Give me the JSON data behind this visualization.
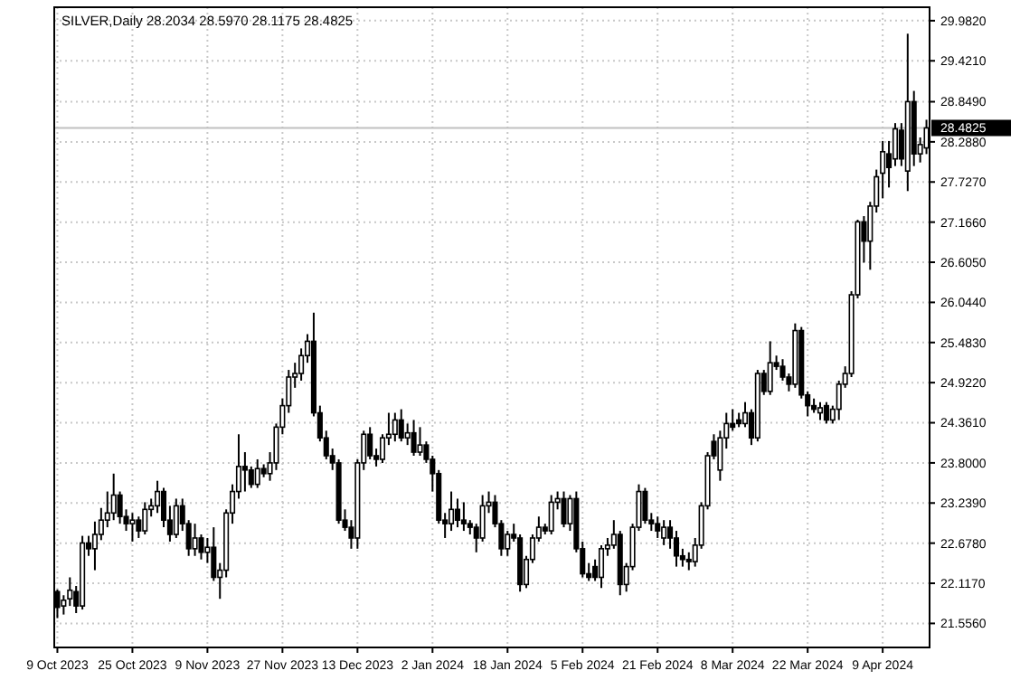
{
  "chart_data": {
    "type": "candlestick",
    "title": "SILVER,Daily  28.2034 28.5970 28.1175 28.4825",
    "categories": [
      "9 Oct 2023",
      null,
      null,
      null,
      null,
      null,
      null,
      null,
      null,
      null,
      null,
      null,
      "25 Oct 2023",
      null,
      null,
      null,
      null,
      null,
      null,
      null,
      null,
      null,
      null,
      null,
      "9 Nov 2023",
      null,
      null,
      null,
      null,
      null,
      null,
      null,
      null,
      null,
      null,
      null,
      "27 Nov 2023",
      null,
      null,
      null,
      null,
      null,
      null,
      null,
      null,
      null,
      null,
      null,
      "13 Dec 2023",
      null,
      null,
      null,
      null,
      null,
      null,
      null,
      null,
      null,
      null,
      null,
      "2 Jan 2024",
      null,
      null,
      null,
      null,
      null,
      null,
      null,
      null,
      null,
      null,
      null,
      "18 Jan 2024",
      null,
      null,
      null,
      null,
      null,
      null,
      null,
      null,
      null,
      null,
      null,
      "5 Feb 2024",
      null,
      null,
      null,
      null,
      null,
      null,
      null,
      null,
      null,
      null,
      null,
      "21 Feb 2024",
      null,
      null,
      null,
      null,
      null,
      null,
      null,
      null,
      null,
      null,
      null,
      "8 Mar 2024",
      null,
      null,
      null,
      null,
      null,
      null,
      null,
      null,
      null,
      null,
      null,
      "22 Mar 2024",
      null,
      null,
      null,
      null,
      null,
      null,
      null,
      null,
      null,
      null,
      null,
      "9 Apr 2024",
      null,
      null,
      null,
      null,
      null,
      null,
      null
    ],
    "ohlc": [
      [
        22.0,
        22.03,
        21.63,
        21.78
      ],
      [
        21.8,
        21.95,
        21.68,
        21.88
      ],
      [
        21.9,
        22.2,
        21.8,
        22.02
      ],
      [
        22.0,
        22.08,
        21.7,
        21.8
      ],
      [
        21.8,
        22.78,
        21.75,
        22.68
      ],
      [
        22.68,
        22.78,
        22.5,
        22.6
      ],
      [
        22.6,
        22.98,
        22.3,
        22.8
      ],
      [
        22.8,
        23.17,
        22.72,
        23.0
      ],
      [
        23.0,
        23.4,
        22.9,
        23.1
      ],
      [
        23.1,
        23.65,
        23.0,
        23.35
      ],
      [
        23.35,
        23.4,
        22.95,
        23.05
      ],
      [
        23.05,
        23.15,
        22.85,
        22.95
      ],
      [
        22.95,
        23.1,
        22.7,
        23.0
      ],
      [
        23.0,
        23.05,
        22.75,
        22.85
      ],
      [
        22.85,
        23.25,
        22.8,
        23.15
      ],
      [
        23.15,
        23.3,
        23.05,
        23.2
      ],
      [
        23.2,
        23.55,
        23.1,
        23.4
      ],
      [
        23.4,
        23.45,
        22.9,
        23.0
      ],
      [
        23.0,
        23.2,
        22.7,
        22.8
      ],
      [
        22.8,
        23.3,
        22.75,
        23.2
      ],
      [
        23.2,
        23.3,
        22.85,
        22.95
      ],
      [
        22.95,
        23.0,
        22.5,
        22.6
      ],
      [
        22.6,
        22.95,
        22.5,
        22.75
      ],
      [
        22.75,
        22.8,
        22.45,
        22.55
      ],
      [
        22.55,
        22.75,
        22.4,
        22.62
      ],
      [
        22.62,
        22.9,
        22.15,
        22.2
      ],
      [
        22.2,
        22.4,
        21.9,
        22.3
      ],
      [
        22.3,
        23.15,
        22.2,
        23.1
      ],
      [
        23.1,
        23.5,
        22.95,
        23.4
      ],
      [
        23.4,
        24.2,
        23.3,
        23.75
      ],
      [
        23.75,
        23.95,
        23.4,
        23.7
      ],
      [
        23.7,
        23.75,
        23.45,
        23.5
      ],
      [
        23.5,
        23.85,
        23.45,
        23.72
      ],
      [
        23.72,
        23.78,
        23.6,
        23.65
      ],
      [
        23.65,
        23.95,
        23.55,
        23.8
      ],
      [
        23.8,
        24.35,
        23.7,
        24.3
      ],
      [
        24.3,
        24.7,
        24.2,
        24.6
      ],
      [
        24.6,
        25.1,
        24.5,
        25.0
      ],
      [
        25.0,
        25.2,
        24.85,
        25.05
      ],
      [
        25.05,
        25.4,
        24.95,
        25.3
      ],
      [
        25.3,
        25.6,
        25.2,
        25.5
      ],
      [
        25.5,
        25.9,
        24.45,
        24.5
      ],
      [
        24.5,
        24.6,
        24.1,
        24.15
      ],
      [
        24.15,
        24.25,
        23.85,
        23.9
      ],
      [
        23.9,
        24.0,
        23.7,
        23.8
      ],
      [
        23.8,
        23.85,
        22.95,
        23.0
      ],
      [
        23.0,
        23.15,
        22.85,
        22.9
      ],
      [
        22.9,
        23.0,
        22.6,
        22.75
      ],
      [
        22.75,
        23.85,
        22.6,
        23.8
      ],
      [
        23.8,
        24.25,
        23.7,
        24.2
      ],
      [
        24.2,
        24.3,
        23.85,
        23.9
      ],
      [
        23.9,
        24.0,
        23.75,
        23.85
      ],
      [
        23.85,
        24.2,
        23.8,
        24.15
      ],
      [
        24.15,
        24.5,
        24.05,
        24.2
      ],
      [
        24.2,
        24.5,
        24.1,
        24.4
      ],
      [
        24.4,
        24.55,
        24.1,
        24.15
      ],
      [
        24.15,
        24.35,
        24.05,
        24.22
      ],
      [
        24.22,
        24.4,
        23.9,
        23.95
      ],
      [
        23.95,
        24.3,
        23.9,
        24.05
      ],
      [
        24.05,
        24.1,
        23.8,
        23.85
      ],
      [
        23.85,
        23.9,
        23.4,
        23.65
      ],
      [
        23.65,
        23.7,
        22.95,
        23.0
      ],
      [
        23.0,
        23.1,
        22.75,
        22.95
      ],
      [
        22.95,
        23.4,
        22.85,
        23.15
      ],
      [
        23.15,
        23.3,
        22.9,
        23.0
      ],
      [
        23.0,
        23.25,
        22.85,
        22.95
      ],
      [
        22.95,
        23.0,
        22.8,
        22.9
      ],
      [
        22.9,
        22.95,
        22.55,
        22.75
      ],
      [
        22.75,
        23.35,
        22.7,
        23.2
      ],
      [
        23.2,
        23.4,
        23.1,
        23.25
      ],
      [
        23.25,
        23.35,
        22.9,
        22.95
      ],
      [
        22.95,
        23.0,
        22.5,
        22.6
      ],
      [
        22.6,
        22.85,
        22.5,
        22.8
      ],
      [
        22.8,
        22.95,
        22.7,
        22.75
      ],
      [
        22.75,
        22.8,
        22.0,
        22.1
      ],
      [
        22.1,
        22.5,
        22.05,
        22.45
      ],
      [
        22.45,
        22.8,
        22.4,
        22.75
      ],
      [
        22.75,
        23.05,
        22.7,
        22.9
      ],
      [
        22.9,
        22.95,
        22.8,
        22.85
      ],
      [
        22.85,
        23.35,
        22.8,
        23.25
      ],
      [
        23.25,
        23.4,
        23.15,
        23.3
      ],
      [
        23.3,
        23.4,
        22.9,
        22.95
      ],
      [
        22.95,
        23.35,
        22.85,
        23.3
      ],
      [
        23.3,
        23.4,
        22.55,
        22.6
      ],
      [
        22.6,
        22.7,
        22.2,
        22.25
      ],
      [
        22.25,
        22.4,
        22.15,
        22.2
      ],
      [
        22.35,
        22.45,
        22.15,
        22.2
      ],
      [
        22.2,
        22.65,
        22.05,
        22.6
      ],
      [
        22.6,
        22.75,
        22.5,
        22.65
      ],
      [
        22.65,
        23.0,
        22.6,
        22.8
      ],
      [
        22.8,
        22.85,
        21.95,
        22.1
      ],
      [
        22.1,
        22.4,
        22.0,
        22.35
      ],
      [
        22.35,
        22.95,
        22.3,
        22.9
      ],
      [
        22.9,
        23.5,
        22.85,
        23.4
      ],
      [
        23.4,
        23.45,
        22.95,
        23.0
      ],
      [
        23.0,
        23.1,
        22.85,
        22.95
      ],
      [
        22.95,
        23.05,
        22.75,
        22.85
      ],
      [
        22.75,
        23.0,
        22.65,
        22.9
      ],
      [
        22.9,
        23.0,
        22.6,
        22.75
      ],
      [
        22.75,
        22.85,
        22.35,
        22.5
      ],
      [
        22.5,
        22.6,
        22.35,
        22.45
      ],
      [
        22.45,
        22.55,
        22.3,
        22.42
      ],
      [
        22.42,
        22.75,
        22.35,
        22.65
      ],
      [
        22.65,
        23.25,
        22.6,
        23.2
      ],
      [
        23.2,
        23.95,
        23.15,
        23.9
      ],
      [
        24.1,
        24.2,
        23.85,
        23.9
      ],
      [
        23.7,
        24.25,
        23.55,
        24.15
      ],
      [
        24.15,
        24.5,
        24.0,
        24.35
      ],
      [
        24.35,
        24.55,
        24.25,
        24.3
      ],
      [
        24.4,
        24.5,
        24.3,
        24.35
      ],
      [
        24.35,
        24.65,
        24.3,
        24.5
      ],
      [
        24.5,
        24.55,
        24.05,
        24.15
      ],
      [
        24.15,
        25.1,
        24.1,
        25.05
      ],
      [
        25.05,
        25.1,
        24.75,
        24.8
      ],
      [
        24.8,
        25.5,
        24.75,
        25.2
      ],
      [
        25.2,
        25.3,
        25.1,
        25.15
      ],
      [
        25.15,
        25.25,
        24.95,
        25.0
      ],
      [
        25.0,
        25.05,
        24.8,
        24.9
      ],
      [
        24.9,
        25.75,
        24.85,
        25.65
      ],
      [
        25.65,
        25.7,
        24.7,
        24.75
      ],
      [
        24.75,
        24.8,
        24.45,
        24.6
      ],
      [
        24.6,
        24.7,
        24.5,
        24.55
      ],
      [
        24.5,
        24.65,
        24.4,
        24.57
      ],
      [
        24.6,
        24.65,
        24.35,
        24.4
      ],
      [
        24.4,
        24.6,
        24.35,
        24.55
      ],
      [
        24.55,
        24.95,
        24.4,
        24.9
      ],
      [
        24.9,
        25.15,
        24.85,
        25.05
      ],
      [
        25.05,
        26.2,
        25.0,
        26.15
      ],
      [
        26.15,
        27.2,
        26.1,
        27.17
      ],
      [
        27.17,
        27.25,
        26.6,
        26.9
      ],
      [
        26.9,
        27.45,
        26.5,
        27.39
      ],
      [
        27.39,
        27.9,
        27.3,
        27.8
      ],
      [
        27.85,
        28.3,
        27.5,
        28.15
      ],
      [
        28.12,
        28.3,
        27.65,
        27.93
      ],
      [
        28.05,
        28.55,
        27.95,
        28.47
      ],
      [
        28.45,
        28.55,
        27.95,
        28.05
      ],
      [
        27.88,
        29.8,
        27.6,
        28.85
      ],
      [
        28.85,
        29.0,
        27.95,
        28.12
      ],
      [
        28.12,
        28.35,
        28.0,
        28.25
      ],
      [
        28.2034,
        28.597,
        28.1175,
        28.4825
      ]
    ],
    "ylim": [
      21.22,
      30.17
    ],
    "yticks": [
      {
        "value": 21.556,
        "label": "21.5560"
      },
      {
        "value": 22.117,
        "label": "22.1170"
      },
      {
        "value": 22.678,
        "label": "22.6780"
      },
      {
        "value": 23.239,
        "label": "23.2390"
      },
      {
        "value": 23.8,
        "label": "23.8000"
      },
      {
        "value": 24.361,
        "label": "24.3610"
      },
      {
        "value": 24.922,
        "label": "24.9220"
      },
      {
        "value": 25.483,
        "label": "25.4830"
      },
      {
        "value": 26.044,
        "label": "26.0440"
      },
      {
        "value": 26.605,
        "label": "26.6050"
      },
      {
        "value": 27.166,
        "label": "27.1660"
      },
      {
        "value": 27.727,
        "label": "27.7270"
      },
      {
        "value": 28.288,
        "label": "28.2880"
      },
      {
        "value": 28.849,
        "label": "28.8490"
      },
      {
        "value": 29.421,
        "label": "29.4210"
      },
      {
        "value": 29.982,
        "label": "29.9820"
      }
    ],
    "grid": true,
    "ref_lines": [
      {
        "axis": "y",
        "value": 28.4825,
        "label": "28.4825",
        "color": "#c0c0c0"
      }
    ]
  }
}
